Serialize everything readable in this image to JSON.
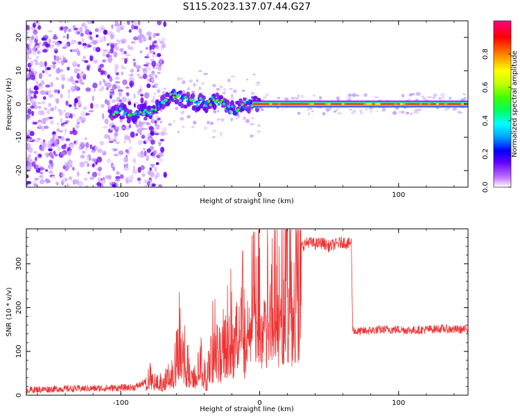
{
  "title": "S115.2023.137.07.44.G27",
  "chart_data": [
    {
      "type": "heatmap",
      "xlabel": "Height of straight line (km)",
      "ylabel": "Frequency (Hz)",
      "xlim": [
        -168,
        150
      ],
      "ylim": [
        -25,
        25
      ],
      "xticks": [
        -100,
        0,
        100
      ],
      "yticks": [
        -20,
        -10,
        0,
        10,
        20
      ],
      "colorbar": {
        "label": "Normalized spectral amplitude",
        "range": [
          0,
          1
        ],
        "ticks": [
          "0.0",
          "0.2",
          "0.4",
          "0.6",
          "0.8"
        ],
        "colormap": [
          "#ffffff",
          "#c070ff",
          "#6000ff",
          "#0000ff",
          "#00a0ff",
          "#00ffff",
          "#00ff60",
          "#40ff00",
          "#c0ff00",
          "#ffff00",
          "#ff8000",
          "#ff0000",
          "#ff0080"
        ]
      },
      "ridge": {
        "description_free": true,
        "x": [
          -108,
          -100,
          -95,
          -90,
          -85,
          -80,
          -75,
          -70,
          -66,
          -62,
          -58,
          -54,
          -50,
          -46,
          -42,
          -38,
          -34,
          -30,
          -26,
          -22,
          -18,
          -14,
          -10,
          -5,
          0,
          20,
          40,
          60,
          80,
          100,
          120,
          150
        ],
        "y": [
          -3,
          -2,
          -3,
          -4,
          -2,
          -3,
          -1,
          0,
          2,
          3,
          2,
          1,
          1,
          0,
          1,
          0,
          1,
          1,
          0,
          -1,
          -2,
          -1,
          0,
          0,
          0,
          0,
          0,
          0,
          0,
          0,
          0,
          0
        ]
      }
    },
    {
      "type": "line",
      "xlabel": "Height of straight line (km)",
      "ylabel": "SNR (10 * v/v)",
      "xlim": [
        -168,
        150
      ],
      "ylim": [
        0,
        380
      ],
      "xticks": [
        -100,
        0,
        100
      ],
      "yticks": [
        0,
        100,
        200,
        300
      ],
      "series": [
        {
          "color": "#ee3333",
          "x": [
            -168,
            -150,
            -130,
            -110,
            -90,
            -82,
            -80,
            -75,
            -70,
            -66,
            -62,
            -60,
            -58,
            -55,
            -52,
            -50,
            -48,
            -45,
            -42,
            -40,
            -38,
            -35,
            -32,
            -30,
            -28,
            -25,
            -22,
            -20,
            -18,
            -15,
            -12,
            -10,
            -8,
            -5,
            -2,
            0,
            5,
            10,
            15,
            20,
            25,
            30,
            35,
            40,
            45,
            50,
            55,
            60,
            64,
            66,
            67,
            70,
            80,
            90,
            100,
            110,
            120,
            130,
            140,
            150
          ],
          "y": [
            12,
            14,
            15,
            16,
            18,
            30,
            50,
            35,
            30,
            45,
            60,
            110,
            150,
            120,
            80,
            45,
            40,
            55,
            90,
            60,
            40,
            120,
            160,
            90,
            120,
            150,
            210,
            180,
            120,
            200,
            260,
            90,
            230,
            290,
            250,
            260,
            280,
            300,
            310,
            320,
            330,
            340,
            350,
            345,
            348,
            340,
            345,
            350,
            345,
            350,
            150,
            145,
            148,
            150,
            150,
            148,
            150,
            152,
            150,
            150
          ]
        }
      ]
    }
  ]
}
